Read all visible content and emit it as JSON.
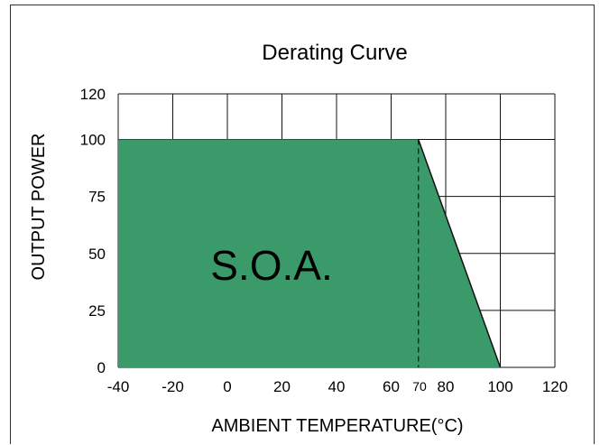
{
  "chart_data": {
    "type": "area",
    "title": "Derating Curve",
    "xlabel": "AMBIENT TEMPERATURE(°C)",
    "ylabel": "OUTPUT POWER",
    "x_ticks": [
      -40,
      -20,
      0,
      20,
      40,
      60,
      80,
      100,
      120
    ],
    "y_ticks": [
      0,
      25,
      50,
      75,
      100,
      120
    ],
    "xlim": [
      -40,
      120
    ],
    "ylim": [
      0,
      120
    ],
    "grid": true,
    "series": [
      {
        "x": [
          -40,
          70,
          100
        ],
        "y": [
          100,
          100,
          0
        ]
      }
    ],
    "annotations": {
      "region_label": "S.O.A.",
      "marker_label": "70",
      "marker_x": 70
    },
    "colors": {
      "fill": "#3a9a6a",
      "line": "#111111",
      "grid": "#111111"
    }
  }
}
